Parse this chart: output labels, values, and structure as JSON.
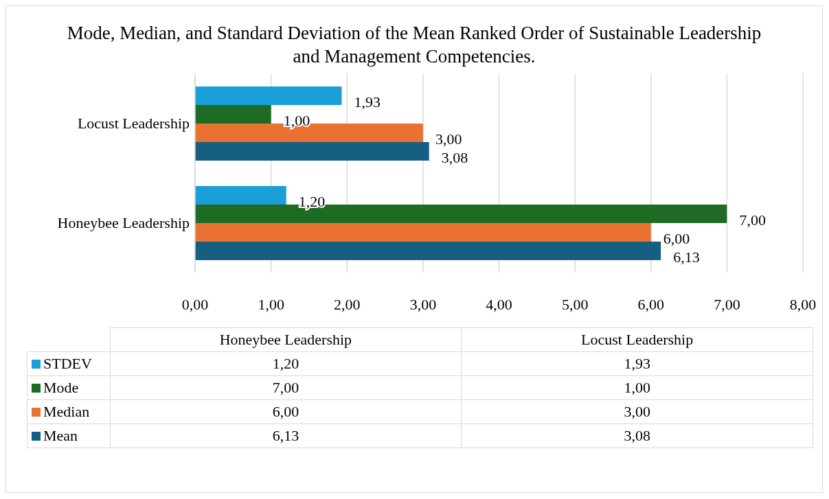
{
  "chart_data": {
    "type": "bar",
    "orientation": "horizontal",
    "title": "Mode, Median, and Standard Deviation of the Mean Ranked Order of Sustainable Leadership and Management Competencies.",
    "categories": [
      "Locust Leadership",
      "Honeybee Leadership"
    ],
    "series": [
      {
        "name": "STDEV",
        "color": "#1a9fd9",
        "values": [
          1.93,
          1.2
        ],
        "value_labels": [
          "1,93",
          "1,20"
        ]
      },
      {
        "name": "Mode",
        "color": "#1e6b24",
        "values": [
          1.0,
          7.0
        ],
        "value_labels": [
          "1,00",
          "7,00"
        ]
      },
      {
        "name": "Median",
        "color": "#e97132",
        "values": [
          3.0,
          6.0
        ],
        "value_labels": [
          "3,00",
          "6,00"
        ]
      },
      {
        "name": "Mean",
        "color": "#156082",
        "values": [
          3.08,
          6.13
        ],
        "value_labels": [
          "3,08",
          "6,13"
        ]
      }
    ],
    "xlim": [
      0,
      8
    ],
    "xticks": [
      {
        "value": 0,
        "label": "0,00"
      },
      {
        "value": 1,
        "label": "1,00"
      },
      {
        "value": 2,
        "label": "2,00"
      },
      {
        "value": 3,
        "label": "3,00"
      },
      {
        "value": 4,
        "label": "4,00"
      },
      {
        "value": 5,
        "label": "5,00"
      },
      {
        "value": 6,
        "label": "6,00"
      },
      {
        "value": 7,
        "label": "7,00"
      },
      {
        "value": 8,
        "label": "8,00"
      }
    ],
    "grid": "x",
    "legend": "bottom"
  }
}
